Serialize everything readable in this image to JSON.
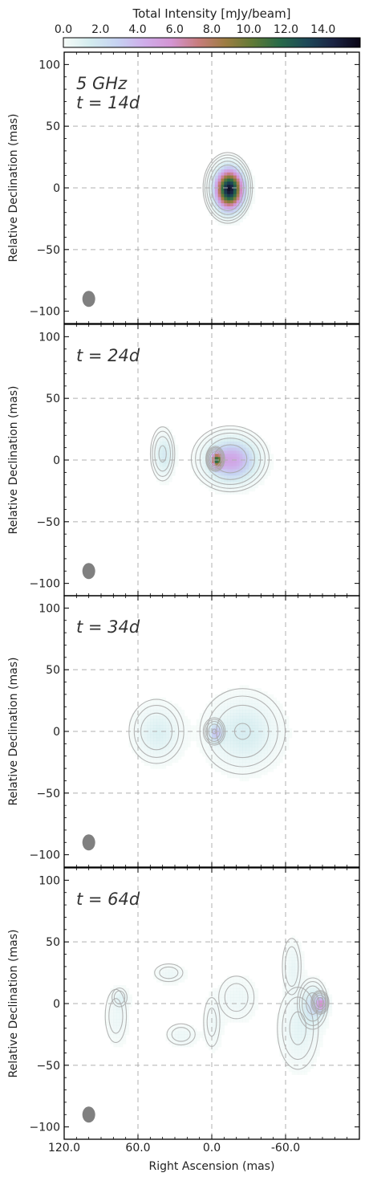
{
  "chart_data": {
    "type": "heatmap",
    "colorbar": {
      "label": "Total Intensity [mJy/beam]",
      "ticks": [
        "0.0",
        "2.0",
        "4.0",
        "6.0",
        "8.0",
        "10.0",
        "12.0",
        "14.0"
      ],
      "range": [
        0,
        16
      ],
      "stops": [
        "#f6fbf8",
        "#d3ecef",
        "#c6d2f2",
        "#cfadea",
        "#d394d2",
        "#c77c7c",
        "#9d7c42",
        "#617a36",
        "#286a48",
        "#1d4958",
        "#1b2444",
        "#0a0515"
      ]
    },
    "xlabel": "Right Ascension (mas)",
    "ylabel": "Relative Declination (mas)",
    "x_ticks": [
      "120.0",
      "60.0",
      "0.0",
      "-60.0"
    ],
    "y_ticks": [
      "100",
      "50",
      "0",
      "−50",
      "−100"
    ],
    "xlim": [
      120,
      -120
    ],
    "ylim": [
      -110,
      110
    ],
    "beam": {
      "x": 100,
      "y": -90
    },
    "panels": [
      {
        "labels": [
          "5 GHz",
          "t = 14d"
        ],
        "sources": [
          {
            "x": -13,
            "y": 0,
            "peak": 15.5,
            "sx": 7,
            "sy": 10
          }
        ]
      },
      {
        "labels": [
          "t = 24d"
        ],
        "sources": [
          {
            "x": -15,
            "y": 1,
            "peak": 4.8,
            "sx": 13,
            "sy": 11
          },
          {
            "x": -3,
            "y": 1,
            "peak": 9.0,
            "sx": 2.8,
            "sy": 3.8
          },
          {
            "x": 40,
            "y": 5,
            "peak": 1.8,
            "sx": 5,
            "sy": 11
          }
        ]
      },
      {
        "labels": [
          "t = 34d"
        ],
        "sources": [
          {
            "x": -25,
            "y": 0,
            "peak": 1.6,
            "sx": 18,
            "sy": 18
          },
          {
            "x": -2,
            "y": 0,
            "peak": 3.0,
            "sx": 4,
            "sy": 5
          },
          {
            "x": 45,
            "y": 0,
            "peak": 1.4,
            "sx": 12,
            "sy": 14
          }
        ]
      },
      {
        "labels": [
          "t = 64d"
        ],
        "sources": [
          {
            "x": -88,
            "y": 1,
            "peak": 4.5,
            "sx": 3,
            "sy": 4
          },
          {
            "x": -82,
            "y": 0,
            "peak": 2.2,
            "sx": 6,
            "sy": 10
          },
          {
            "x": -70,
            "y": -20,
            "peak": 1.0,
            "sx": 10,
            "sy": 20
          },
          {
            "x": -65,
            "y": 30,
            "peak": 0.8,
            "sx": 5,
            "sy": 15
          },
          {
            "x": -20,
            "y": 5,
            "peak": 0.7,
            "sx": 10,
            "sy": 12
          },
          {
            "x": 0,
            "y": -15,
            "peak": 0.6,
            "sx": 5,
            "sy": 15
          },
          {
            "x": 25,
            "y": -25,
            "peak": 0.7,
            "sx": 8,
            "sy": 6
          },
          {
            "x": 35,
            "y": 25,
            "peak": 0.7,
            "sx": 8,
            "sy": 5
          },
          {
            "x": 78,
            "y": -10,
            "peak": 0.7,
            "sx": 6,
            "sy": 15
          },
          {
            "x": 75,
            "y": 5,
            "peak": 0.8,
            "sx": 4,
            "sy": 5
          }
        ]
      }
    ]
  }
}
